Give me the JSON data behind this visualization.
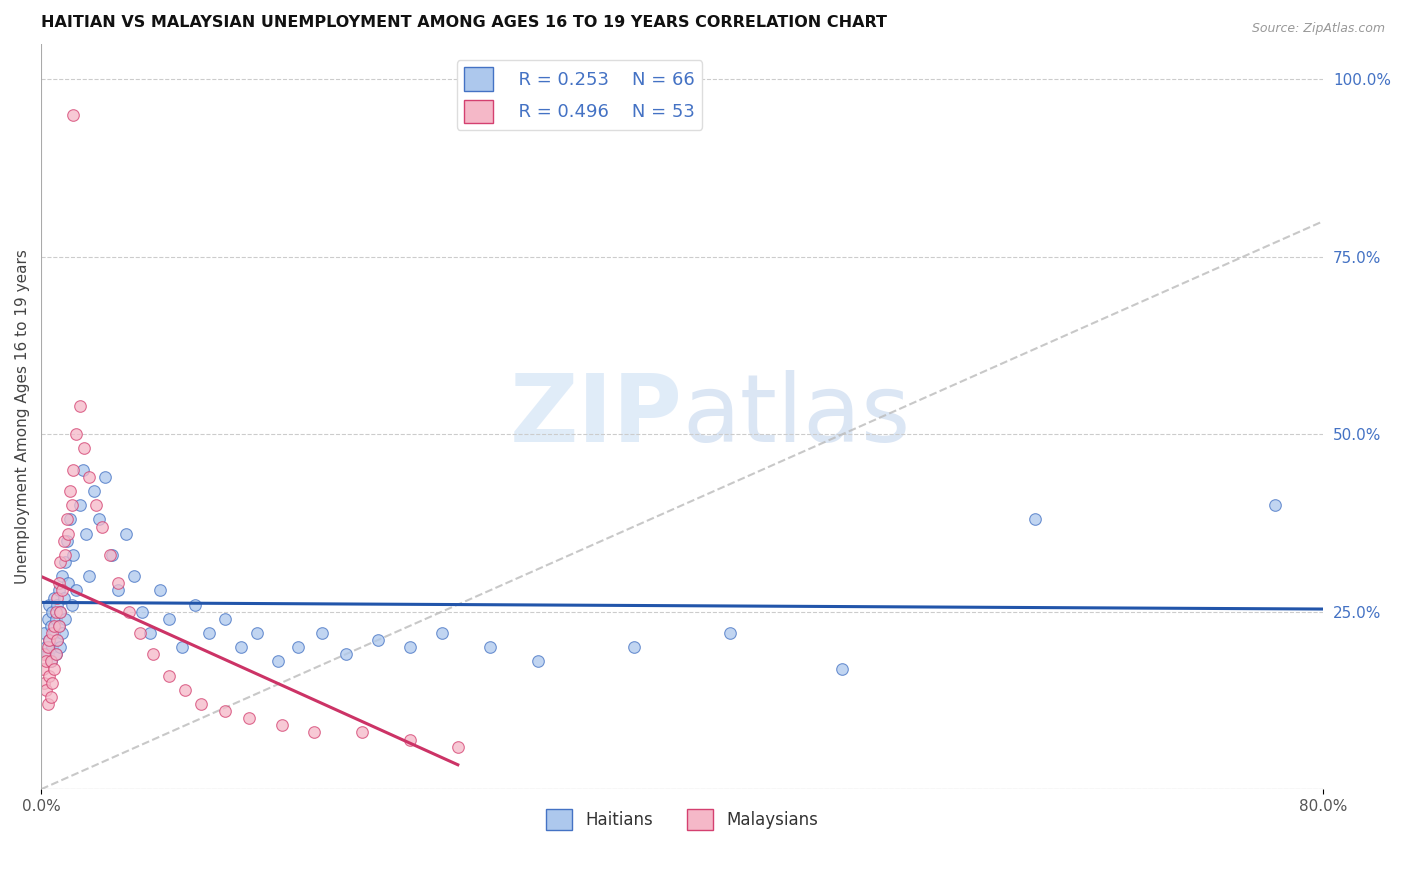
{
  "title": "HAITIAN VS MALAYSIAN UNEMPLOYMENT AMONG AGES 16 TO 19 YEARS CORRELATION CHART",
  "source": "Source: ZipAtlas.com",
  "ylabel": "Unemployment Among Ages 16 to 19 years",
  "xlim": [
    0.0,
    0.8
  ],
  "ylim": [
    0.0,
    1.05
  ],
  "y_ticks_right": [
    0.0,
    0.25,
    0.5,
    0.75,
    1.0
  ],
  "y_tick_labels_right": [
    "",
    "25.0%",
    "50.0%",
    "75.0%",
    "100.0%"
  ],
  "legend_r1": "R = 0.253",
  "legend_n1": "N = 66",
  "legend_r2": "R = 0.496",
  "legend_n2": "N = 53",
  "color_haitians_fill": "#adc8ed",
  "color_haitians_edge": "#4472c4",
  "color_malaysians_fill": "#f5b8c8",
  "color_malaysians_edge": "#d44070",
  "color_haitians_line": "#2255aa",
  "color_malaysians_line": "#cc3366",
  "diagonal_color": "#bbbbbb",
  "watermark_zip": "ZIP",
  "watermark_atlas": "atlas",
  "background_color": "#ffffff",
  "haitians_x": [
    0.002,
    0.003,
    0.004,
    0.004,
    0.005,
    0.005,
    0.006,
    0.006,
    0.007,
    0.007,
    0.008,
    0.008,
    0.009,
    0.009,
    0.01,
    0.01,
    0.011,
    0.011,
    0.012,
    0.012,
    0.013,
    0.013,
    0.014,
    0.015,
    0.015,
    0.016,
    0.017,
    0.018,
    0.019,
    0.02,
    0.022,
    0.024,
    0.026,
    0.028,
    0.03,
    0.033,
    0.036,
    0.04,
    0.044,
    0.048,
    0.053,
    0.058,
    0.063,
    0.068,
    0.074,
    0.08,
    0.088,
    0.096,
    0.105,
    0.115,
    0.125,
    0.135,
    0.148,
    0.16,
    0.175,
    0.19,
    0.21,
    0.23,
    0.25,
    0.28,
    0.31,
    0.37,
    0.43,
    0.5,
    0.62,
    0.77
  ],
  "haitians_y": [
    0.22,
    0.2,
    0.19,
    0.24,
    0.21,
    0.26,
    0.18,
    0.23,
    0.2,
    0.25,
    0.22,
    0.27,
    0.19,
    0.24,
    0.21,
    0.26,
    0.23,
    0.28,
    0.2,
    0.25,
    0.22,
    0.3,
    0.27,
    0.32,
    0.24,
    0.35,
    0.29,
    0.38,
    0.26,
    0.33,
    0.28,
    0.4,
    0.45,
    0.36,
    0.3,
    0.42,
    0.38,
    0.44,
    0.33,
    0.28,
    0.36,
    0.3,
    0.25,
    0.22,
    0.28,
    0.24,
    0.2,
    0.26,
    0.22,
    0.24,
    0.2,
    0.22,
    0.18,
    0.2,
    0.22,
    0.19,
    0.21,
    0.2,
    0.22,
    0.2,
    0.18,
    0.2,
    0.22,
    0.17,
    0.38,
    0.4
  ],
  "malaysians_x": [
    0.001,
    0.002,
    0.002,
    0.003,
    0.003,
    0.004,
    0.004,
    0.005,
    0.005,
    0.006,
    0.006,
    0.007,
    0.007,
    0.008,
    0.008,
    0.009,
    0.009,
    0.01,
    0.01,
    0.011,
    0.011,
    0.012,
    0.012,
    0.013,
    0.014,
    0.015,
    0.016,
    0.017,
    0.018,
    0.019,
    0.02,
    0.022,
    0.024,
    0.027,
    0.03,
    0.034,
    0.038,
    0.043,
    0.048,
    0.055,
    0.062,
    0.07,
    0.08,
    0.09,
    0.1,
    0.115,
    0.13,
    0.15,
    0.17,
    0.2,
    0.23,
    0.26,
    0.02
  ],
  "malaysians_y": [
    0.17,
    0.15,
    0.19,
    0.14,
    0.18,
    0.12,
    0.2,
    0.16,
    0.21,
    0.13,
    0.18,
    0.15,
    0.22,
    0.17,
    0.23,
    0.19,
    0.25,
    0.21,
    0.27,
    0.23,
    0.29,
    0.25,
    0.32,
    0.28,
    0.35,
    0.33,
    0.38,
    0.36,
    0.42,
    0.4,
    0.45,
    0.5,
    0.54,
    0.48,
    0.44,
    0.4,
    0.37,
    0.33,
    0.29,
    0.25,
    0.22,
    0.19,
    0.16,
    0.14,
    0.12,
    0.11,
    0.1,
    0.09,
    0.08,
    0.08,
    0.07,
    0.06,
    0.95
  ]
}
